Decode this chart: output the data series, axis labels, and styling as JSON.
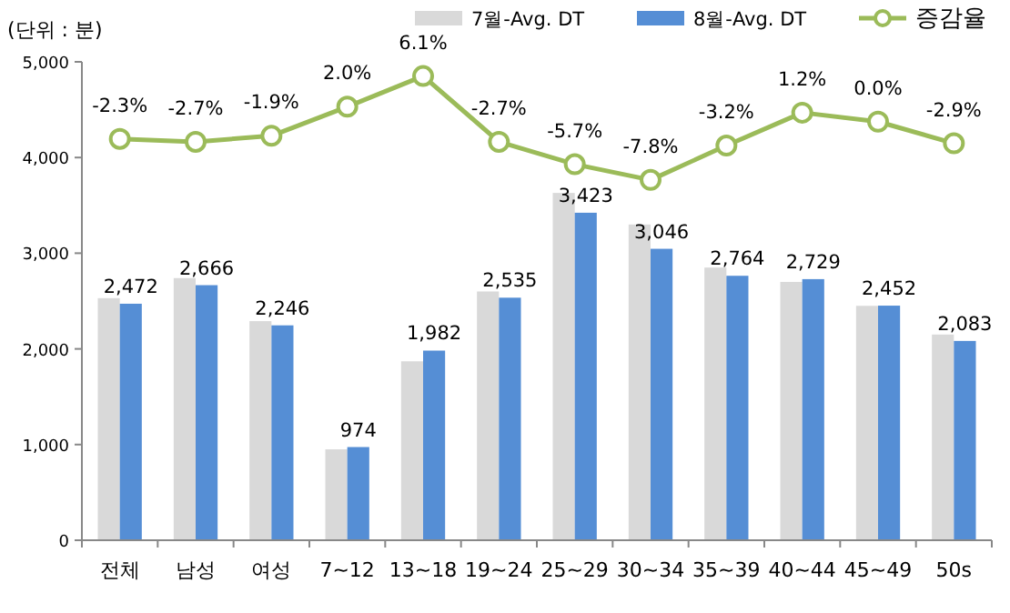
{
  "chart_data": {
    "type": "bar",
    "ylabel": "(단위 : 분)",
    "categories": [
      "전체",
      "남성",
      "여성",
      "7~12",
      "13~18",
      "19~24",
      "25~29",
      "30~34",
      "35~39",
      "40~44",
      "45~49",
      "50s"
    ],
    "series": [
      {
        "name": "7월-Avg. DT",
        "color": "#d9d9d9",
        "values": [
          2530,
          2740,
          2290,
          950,
          1870,
          2600,
          3630,
          3300,
          2850,
          2700,
          2450,
          2150
        ]
      },
      {
        "name": "8월-Avg. DT",
        "color": "#558ed5",
        "values": [
          2472,
          2666,
          2246,
          974,
          1982,
          2535,
          3423,
          3046,
          2764,
          2729,
          2452,
          2083
        ],
        "value_labels": [
          "2,472",
          "2,666",
          "2,246",
          "974",
          "1,982",
          "2,535",
          "3,423",
          "3,046",
          "2,764",
          "2,729",
          "2,452",
          "2,083"
        ]
      },
      {
        "name": "증감율",
        "type": "line",
        "axis": "y2",
        "color": "#9bbb59",
        "marker": "circle",
        "values": [
          -2.3,
          -2.7,
          -1.9,
          2.0,
          6.1,
          -2.7,
          -5.7,
          -7.8,
          -3.2,
          1.2,
          0.0,
          -2.9
        ],
        "value_labels": [
          "-2.3%",
          "-2.7%",
          "-1.9%",
          "2.0%",
          "6.1%",
          "-2.7%",
          "-5.7%",
          "-7.8%",
          "-3.2%",
          "1.2%",
          "0.0%",
          "-2.9%"
        ]
      }
    ],
    "ylim": [
      0,
      5000
    ],
    "yticks": [
      0,
      {
        "value": 1000,
        "label": "1,000"
      },
      {
        "value": 2000,
        "label": "2,000"
      },
      {
        "value": 3000,
        "label": "3,000"
      },
      {
        "value": 4000,
        "label": "4,000"
      },
      {
        "value": 5000,
        "label": "5,000"
      }
    ],
    "y2lim": [
      -56,
      8
    ],
    "legend": "top right"
  }
}
